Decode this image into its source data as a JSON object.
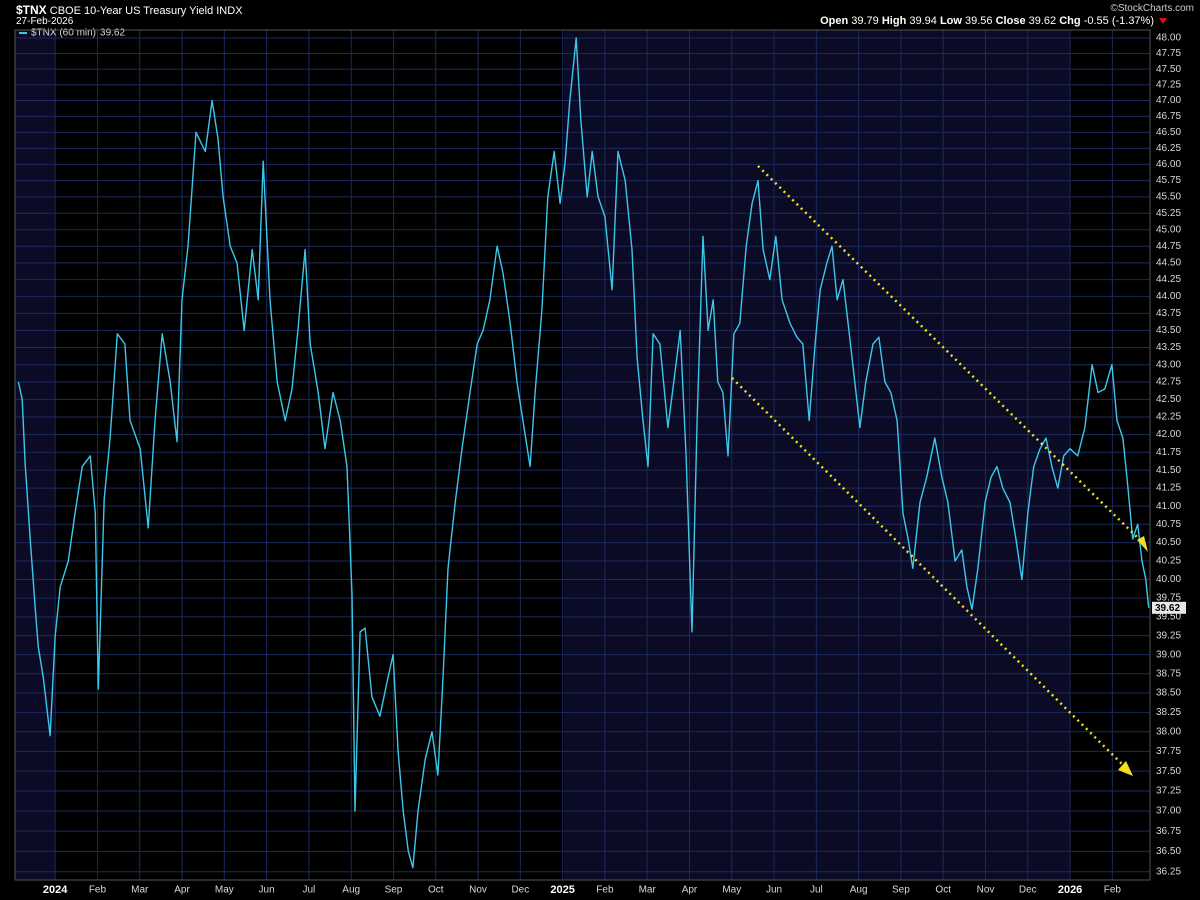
{
  "header": {
    "symbol": "$TNX",
    "name": "CBOE 10-Year US Treasury Yield INDX",
    "date": "27-Feb-2026",
    "copyright": "©StockCharts.com",
    "quote": [
      {
        "label": "Open",
        "value": 39.79
      },
      {
        "label": "High",
        "value": 39.94
      },
      {
        "label": "Low",
        "value": 39.56
      },
      {
        "label": "Close",
        "value": 39.62
      }
    ],
    "change_label": "Chg",
    "change": "-0.55 (-1.37%)"
  },
  "chart_data": {
    "type": "line",
    "log_scale": true,
    "grid": true,
    "legend": "top-left",
    "series": [
      {
        "name": "$TNX (60 min)",
        "color": "#3cc8ea",
        "x": [
          -0.87,
          -0.78,
          -0.71,
          -0.59,
          -0.47,
          -0.4,
          -0.28,
          -0.12,
          0,
          0.12,
          0.31,
          0.47,
          0.64,
          0.83,
          0.95,
          1.02,
          1.16,
          1.3,
          1.47,
          1.65,
          1.77,
          2.01,
          2.2,
          2.36,
          2.53,
          2.72,
          2.88,
          3.0,
          3.14,
          3.33,
          3.55,
          3.71,
          3.85,
          3.97,
          4.14,
          4.3,
          4.47,
          4.66,
          4.8,
          4.92,
          5.08,
          5.25,
          5.44,
          5.6,
          5.74,
          5.91,
          6.03,
          6.22,
          6.38,
          6.57,
          6.74,
          6.9,
          7.02,
          7.09,
          7.21,
          7.33,
          7.49,
          7.68,
          7.87,
          7.99,
          8.11,
          8.23,
          8.35,
          8.46,
          8.58,
          8.75,
          8.91,
          9.05,
          9.17,
          9.29,
          9.46,
          9.62,
          9.81,
          9.98,
          10.12,
          10.28,
          10.45,
          10.59,
          10.76,
          10.92,
          11.06,
          11.23,
          11.35,
          11.51,
          11.65,
          11.8,
          11.94,
          12.06,
          12.17,
          12.32,
          12.43,
          12.58,
          12.7,
          12.84,
          13.0,
          13.17,
          13.31,
          13.48,
          13.64,
          13.76,
          13.9,
          14.02,
          14.14,
          14.3,
          14.49,
          14.63,
          14.78,
          14.92,
          15.06,
          15.18,
          15.32,
          15.44,
          15.56,
          15.67,
          15.79,
          15.91,
          16.05,
          16.19,
          16.34,
          16.48,
          16.62,
          16.74,
          16.9,
          17.04,
          17.19,
          17.38,
          17.54,
          17.68,
          17.83,
          17.97,
          18.09,
          18.25,
          18.37,
          18.49,
          18.63,
          18.77,
          18.91,
          19.03,
          19.17,
          19.34,
          19.48,
          19.62,
          19.76,
          19.91,
          20.05,
          20.17,
          20.28,
          20.45,
          20.61,
          20.8,
          20.97,
          21.11,
          21.28,
          21.44,
          21.56,
          21.68,
          21.82,
          21.99,
          22.13,
          22.27,
          22.41,
          22.58,
          22.72,
          22.86,
          23.0,
          23.14,
          23.29,
          23.43,
          23.57,
          23.71,
          23.85,
          24.0,
          24.18,
          24.35,
          24.52,
          24.66,
          24.82,
          24.99,
          25.11,
          25.25,
          25.37,
          25.48,
          25.6,
          25.7,
          25.79,
          25.86
        ],
        "values": [
          42.75,
          42.5,
          41.6,
          40.55,
          39.6,
          39.1,
          38.7,
          37.95,
          39.25,
          39.9,
          40.25,
          40.9,
          41.55,
          41.7,
          40.9,
          38.55,
          41.1,
          41.95,
          43.45,
          43.3,
          42.2,
          41.8,
          40.7,
          42.2,
          43.45,
          42.75,
          41.9,
          43.95,
          44.75,
          46.5,
          46.2,
          47.0,
          46.4,
          45.5,
          44.75,
          44.5,
          43.5,
          44.7,
          43.95,
          46.05,
          43.95,
          42.75,
          42.2,
          42.65,
          43.5,
          44.7,
          43.3,
          42.6,
          41.8,
          42.6,
          42.2,
          41.55,
          39.8,
          37.0,
          39.3,
          39.35,
          38.45,
          38.2,
          38.7,
          39.0,
          37.75,
          37.0,
          36.5,
          36.3,
          37.0,
          37.65,
          38.0,
          37.45,
          38.7,
          40.15,
          41.05,
          41.8,
          42.6,
          43.3,
          43.5,
          43.95,
          44.75,
          44.35,
          43.6,
          42.75,
          42.2,
          41.55,
          42.6,
          43.8,
          45.5,
          46.2,
          45.4,
          46.05,
          47.0,
          48.0,
          46.7,
          45.5,
          46.2,
          45.5,
          45.2,
          44.1,
          46.2,
          45.75,
          44.7,
          43.1,
          42.2,
          41.55,
          43.45,
          43.3,
          42.1,
          42.75,
          43.5,
          41.7,
          39.3,
          42.2,
          44.9,
          43.5,
          43.95,
          42.75,
          42.6,
          41.7,
          43.45,
          43.6,
          44.75,
          45.4,
          45.75,
          44.7,
          44.25,
          44.9,
          43.95,
          43.6,
          43.4,
          43.3,
          42.2,
          43.3,
          44.1,
          44.5,
          44.75,
          43.95,
          44.25,
          43.5,
          42.75,
          42.1,
          42.75,
          43.3,
          43.4,
          42.75,
          42.6,
          42.2,
          40.9,
          40.55,
          40.15,
          41.05,
          41.4,
          41.95,
          41.4,
          41.05,
          40.25,
          40.4,
          39.9,
          39.6,
          40.15,
          41.05,
          41.4,
          41.55,
          41.25,
          41.05,
          40.55,
          40.0,
          40.9,
          41.55,
          41.8,
          41.95,
          41.55,
          41.25,
          41.7,
          41.8,
          41.7,
          42.1,
          43.0,
          42.6,
          42.65,
          43.0,
          42.2,
          41.95,
          41.25,
          40.55,
          40.75,
          40.25,
          40.0,
          39.62
        ]
      }
    ],
    "xlim": [
      -0.95,
      25.89
    ],
    "xticks": [
      {
        "value": 0,
        "label": "2024"
      },
      {
        "value": 1,
        "label": "Feb"
      },
      {
        "value": 2,
        "label": "Mar"
      },
      {
        "value": 3,
        "label": "Apr"
      },
      {
        "value": 4,
        "label": "May"
      },
      {
        "value": 5,
        "label": "Jun"
      },
      {
        "value": 6,
        "label": "Jul"
      },
      {
        "value": 7,
        "label": "Aug"
      },
      {
        "value": 8,
        "label": "Sep"
      },
      {
        "value": 9,
        "label": "Oct"
      },
      {
        "value": 10,
        "label": "Nov"
      },
      {
        "value": 11,
        "label": "Dec"
      },
      {
        "value": 12,
        "label": "2025"
      },
      {
        "value": 13,
        "label": "Feb"
      },
      {
        "value": 14,
        "label": "Mar"
      },
      {
        "value": 15,
        "label": "Apr"
      },
      {
        "value": 16,
        "label": "May"
      },
      {
        "value": 17,
        "label": "Jun"
      },
      {
        "value": 18,
        "label": "Jul"
      },
      {
        "value": 19,
        "label": "Aug"
      },
      {
        "value": 20,
        "label": "Sep"
      },
      {
        "value": 21,
        "label": "Oct"
      },
      {
        "value": 22,
        "label": "Nov"
      },
      {
        "value": 23,
        "label": "Dec"
      },
      {
        "value": 24,
        "label": "2026"
      },
      {
        "value": 25,
        "label": "Feb"
      }
    ],
    "ylim": [
      36.15,
      48.13
    ],
    "yticks": [
      {
        "value": 36.25,
        "label": "36.25"
      },
      {
        "value": 36.5,
        "label": "36.50"
      },
      {
        "value": 36.75,
        "label": "36.75"
      },
      {
        "value": 37,
        "label": "37.00"
      },
      {
        "value": 37.25,
        "label": "37.25"
      },
      {
        "value": 37.5,
        "label": "37.50"
      },
      {
        "value": 37.75,
        "label": "37.75"
      },
      {
        "value": 38,
        "label": "38.00"
      },
      {
        "value": 38.25,
        "label": "38.25"
      },
      {
        "value": 38.5,
        "label": "38.50"
      },
      {
        "value": 38.75,
        "label": "38.75"
      },
      {
        "value": 39,
        "label": "39.00"
      },
      {
        "value": 39.25,
        "label": "39.25"
      },
      {
        "value": 39.5,
        "label": "39.50"
      },
      {
        "value": 39.75,
        "label": "39.75"
      },
      {
        "value": 40,
        "label": "40.00"
      },
      {
        "value": 40.25,
        "label": "40.25"
      },
      {
        "value": 40.5,
        "label": "40.50"
      },
      {
        "value": 40.75,
        "label": "40.75"
      },
      {
        "value": 41,
        "label": "41.00"
      },
      {
        "value": 41.25,
        "label": "41.25"
      },
      {
        "value": 41.5,
        "label": "41.50"
      },
      {
        "value": 41.75,
        "label": "41.75"
      },
      {
        "value": 42,
        "label": "42.00"
      },
      {
        "value": 42.25,
        "label": "42.25"
      },
      {
        "value": 42.5,
        "label": "42.50"
      },
      {
        "value": 42.75,
        "label": "42.75"
      },
      {
        "value": 43,
        "label": "43.00"
      },
      {
        "value": 43.25,
        "label": "43.25"
      },
      {
        "value": 43.5,
        "label": "43.50"
      },
      {
        "value": 43.75,
        "label": "43.75"
      },
      {
        "value": 44,
        "label": "44.00"
      },
      {
        "value": 44.25,
        "label": "44.25"
      },
      {
        "value": 44.5,
        "label": "44.50"
      },
      {
        "value": 44.75,
        "label": "44.75"
      },
      {
        "value": 45,
        "label": "45.00"
      },
      {
        "value": 45.25,
        "label": "45.25"
      },
      {
        "value": 45.5,
        "label": "45.50"
      },
      {
        "value": 45.75,
        "label": "45.75"
      },
      {
        "value": 46,
        "label": "46.00"
      },
      {
        "value": 46.25,
        "label": "46.25"
      },
      {
        "value": 46.5,
        "label": "46.50"
      },
      {
        "value": 46.75,
        "label": "46.75"
      },
      {
        "value": 47,
        "label": "47.00"
      },
      {
        "value": 47.25,
        "label": "47.25"
      },
      {
        "value": 47.5,
        "label": "47.50"
      },
      {
        "value": 47.75,
        "label": "47.75"
      },
      {
        "value": 48,
        "label": "48.00"
      }
    ]
  }
}
